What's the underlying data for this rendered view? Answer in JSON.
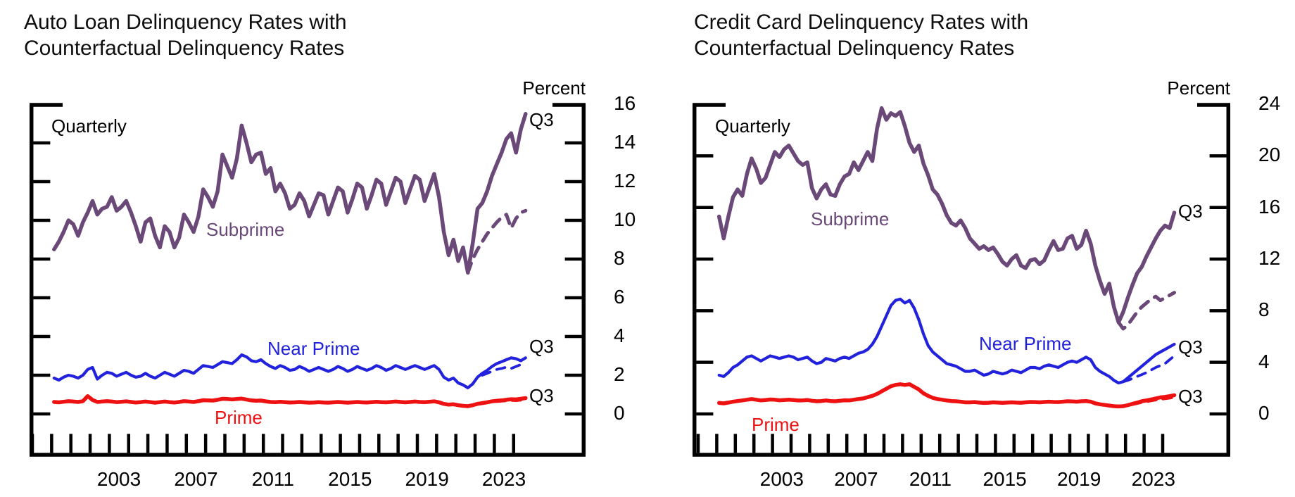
{
  "chart_data": [
    {
      "type": "line",
      "title": "Auto Loan Delinquency Rates with Counterfactual Delinquency Rates",
      "title_line1": "Auto Loan Delinquency Rates with",
      "title_line2": "Counterfactual Delinquency Rates",
      "unit_label": "Percent",
      "freq_label": "Quarterly",
      "end_label": "Q3",
      "frequency": "quarterly",
      "x_start": "2000Q1",
      "x_end": "2024Q3",
      "ylim": [
        0,
        16
      ],
      "ytick_labels": [
        "0",
        "2",
        "4",
        "6",
        "8",
        "10",
        "12",
        "14",
        "16"
      ],
      "xtick_labels": [
        "2003",
        "2007",
        "2011",
        "2015",
        "2019",
        "2023"
      ],
      "series": [
        {
          "name": "Subprime",
          "label": "Subprime",
          "color": "#6a4878",
          "width": 5.5,
          "dash": null,
          "start_index": 0,
          "values": [
            8.5,
            8.9,
            9.4,
            10.0,
            9.8,
            9.2,
            9.9,
            10.4,
            11.0,
            10.3,
            10.6,
            10.7,
            11.2,
            10.5,
            10.7,
            11.0,
            10.4,
            9.7,
            8.9,
            9.9,
            10.1,
            9.2,
            8.6,
            9.7,
            9.4,
            8.6,
            9.1,
            10.3,
            9.9,
            9.4,
            10.2,
            11.6,
            11.2,
            10.7,
            11.5,
            13.4,
            12.8,
            12.2,
            13.2,
            14.9,
            14.0,
            13.0,
            13.4,
            13.5,
            12.4,
            12.7,
            11.5,
            11.9,
            11.4,
            10.6,
            10.8,
            11.4,
            11.0,
            10.2,
            10.8,
            11.4,
            11.3,
            10.3,
            11.0,
            11.7,
            11.5,
            10.4,
            11.1,
            11.9,
            11.7,
            10.6,
            11.3,
            12.1,
            11.9,
            10.8,
            11.5,
            12.2,
            12.0,
            10.9,
            11.6,
            12.3,
            12.1,
            11.0,
            11.7,
            12.4,
            11.2,
            9.4,
            8.2,
            9.0,
            7.9,
            8.6,
            7.3,
            8.8,
            10.6,
            10.9,
            11.5,
            12.3,
            12.9,
            13.5,
            14.2,
            14.5,
            13.5,
            14.7,
            15.5
          ]
        },
        {
          "name": "Subprime counterfactual",
          "label": "",
          "color": "#6a4878",
          "width": 5,
          "dash": "14 11",
          "start_index": 86,
          "values": [
            7.3,
            8.0,
            8.5,
            8.9,
            9.3,
            9.6,
            9.9,
            10.15,
            10.3,
            9.6,
            10.1,
            10.4,
            10.5
          ]
        },
        {
          "name": "Near Prime",
          "label": "Near Prime",
          "color": "#2222dc",
          "width": 4.2,
          "dash": null,
          "start_index": 0,
          "values": [
            1.85,
            1.75,
            1.9,
            2.0,
            1.95,
            1.85,
            2.0,
            2.3,
            2.4,
            1.8,
            2.0,
            2.15,
            2.1,
            1.95,
            2.05,
            2.15,
            2.0,
            1.9,
            1.95,
            2.1,
            1.95,
            1.85,
            2.0,
            2.15,
            2.05,
            1.95,
            2.1,
            2.25,
            2.2,
            2.1,
            2.3,
            2.5,
            2.45,
            2.4,
            2.55,
            2.7,
            2.65,
            2.6,
            2.8,
            3.05,
            2.95,
            2.75,
            2.7,
            2.8,
            2.6,
            2.45,
            2.35,
            2.5,
            2.4,
            2.25,
            2.3,
            2.45,
            2.35,
            2.2,
            2.3,
            2.4,
            2.3,
            2.2,
            2.3,
            2.45,
            2.35,
            2.2,
            2.3,
            2.45,
            2.35,
            2.25,
            2.35,
            2.5,
            2.4,
            2.25,
            2.35,
            2.5,
            2.4,
            2.3,
            2.4,
            2.5,
            2.4,
            2.3,
            2.4,
            2.5,
            2.3,
            1.9,
            1.75,
            1.85,
            1.6,
            1.5,
            1.35,
            1.55,
            1.9,
            2.1,
            2.25,
            2.45,
            2.6,
            2.7,
            2.8,
            2.9,
            2.85,
            2.75,
            2.9
          ]
        },
        {
          "name": "Near Prime counterfactual",
          "label": "",
          "color": "#2222dc",
          "width": 3.8,
          "dash": "12 10",
          "start_index": 89,
          "values": [
            2.0,
            2.1,
            2.2,
            2.3,
            2.35,
            2.42,
            2.35,
            2.45,
            2.55,
            2.62
          ]
        },
        {
          "name": "Prime",
          "label": "Prime",
          "color": "#ee1111",
          "width": 5.5,
          "dash": null,
          "start_index": 0,
          "values": [
            0.62,
            0.6,
            0.63,
            0.66,
            0.64,
            0.62,
            0.66,
            0.92,
            0.72,
            0.62,
            0.64,
            0.66,
            0.64,
            0.61,
            0.63,
            0.65,
            0.62,
            0.59,
            0.61,
            0.64,
            0.61,
            0.58,
            0.61,
            0.64,
            0.61,
            0.59,
            0.62,
            0.66,
            0.64,
            0.62,
            0.66,
            0.71,
            0.7,
            0.69,
            0.73,
            0.78,
            0.77,
            0.75,
            0.77,
            0.79,
            0.74,
            0.7,
            0.68,
            0.69,
            0.65,
            0.62,
            0.61,
            0.63,
            0.61,
            0.59,
            0.6,
            0.62,
            0.6,
            0.58,
            0.59,
            0.61,
            0.59,
            0.58,
            0.6,
            0.62,
            0.6,
            0.58,
            0.6,
            0.62,
            0.6,
            0.59,
            0.61,
            0.63,
            0.61,
            0.6,
            0.62,
            0.64,
            0.62,
            0.6,
            0.62,
            0.64,
            0.62,
            0.61,
            0.63,
            0.65,
            0.6,
            0.52,
            0.48,
            0.5,
            0.45,
            0.42,
            0.4,
            0.45,
            0.52,
            0.56,
            0.6,
            0.65,
            0.68,
            0.7,
            0.73,
            0.76,
            0.75,
            0.78,
            0.82
          ]
        },
        {
          "name": "Prime counterfactual",
          "label": "",
          "color": "#ee1111",
          "width": 5,
          "dash": "12 10",
          "start_index": 92,
          "values": [
            0.66,
            0.68,
            0.7,
            0.72,
            0.71,
            0.73,
            0.75
          ]
        }
      ]
    },
    {
      "type": "line",
      "title": "Credit Card Delinquency Rates with Counterfactual Delinquency Rates",
      "title_line1": "Credit Card Delinquency Rates with",
      "title_line2": "Counterfactual Delinquency Rates",
      "unit_label": "Percent",
      "freq_label": "Quarterly",
      "end_label": "Q3",
      "frequency": "quarterly",
      "x_start": "2000Q1",
      "x_end": "2024Q3",
      "ylim": [
        0,
        24
      ],
      "ytick_labels": [
        "0",
        "4",
        "8",
        "12",
        "16",
        "20",
        "24"
      ],
      "xtick_labels": [
        "2003",
        "2007",
        "2011",
        "2015",
        "2019",
        "2023"
      ],
      "series": [
        {
          "name": "Subprime",
          "label": "Subprime",
          "color": "#6a4878",
          "width": 5.5,
          "dash": null,
          "start_index": 0,
          "values": [
            15.3,
            13.6,
            15.3,
            16.8,
            17.4,
            16.9,
            18.6,
            19.8,
            19.0,
            17.9,
            18.3,
            19.3,
            20.3,
            19.9,
            20.5,
            20.8,
            20.2,
            19.6,
            19.3,
            19.5,
            17.5,
            16.7,
            17.4,
            17.8,
            17.0,
            16.9,
            17.8,
            18.4,
            18.6,
            19.5,
            18.9,
            19.6,
            20.3,
            19.6,
            22.1,
            23.7,
            22.8,
            23.3,
            23.1,
            23.4,
            22.3,
            21.0,
            20.3,
            20.8,
            19.4,
            18.5,
            17.4,
            17.0,
            16.3,
            15.4,
            14.8,
            14.6,
            15.0,
            14.4,
            13.6,
            13.2,
            12.8,
            13.0,
            12.7,
            12.9,
            12.4,
            11.8,
            11.5,
            12.0,
            12.3,
            11.5,
            11.3,
            11.9,
            12.0,
            11.6,
            11.9,
            12.7,
            13.4,
            12.7,
            12.8,
            13.6,
            13.8,
            12.8,
            13.1,
            14.2,
            13.2,
            11.5,
            10.3,
            9.3,
            10.1,
            8.3,
            7.1,
            7.9,
            9.0,
            10.0,
            10.9,
            11.4,
            12.2,
            12.9,
            13.6,
            14.2,
            14.6,
            14.4,
            15.6
          ]
        },
        {
          "name": "Subprime counterfactual",
          "label": "",
          "color": "#6a4878",
          "width": 5,
          "dash": "14 11",
          "start_index": 86,
          "values": [
            7.1,
            6.6,
            6.9,
            7.4,
            7.9,
            8.3,
            8.6,
            8.9,
            9.1,
            8.8,
            9.0,
            9.2,
            9.4
          ]
        },
        {
          "name": "Near Prime",
          "label": "Near Prime",
          "color": "#2222dc",
          "width": 4.2,
          "dash": null,
          "start_index": 0,
          "values": [
            3.0,
            2.9,
            3.2,
            3.6,
            3.8,
            4.1,
            4.4,
            4.5,
            4.3,
            4.1,
            4.3,
            4.5,
            4.4,
            4.3,
            4.4,
            4.5,
            4.4,
            4.2,
            4.3,
            4.4,
            4.1,
            3.9,
            4.0,
            4.3,
            4.2,
            4.1,
            4.3,
            4.4,
            4.3,
            4.5,
            4.7,
            4.8,
            5.0,
            5.4,
            6.0,
            6.8,
            7.6,
            8.4,
            8.8,
            8.9,
            8.6,
            8.8,
            8.2,
            7.3,
            6.2,
            5.3,
            4.8,
            4.5,
            4.2,
            3.9,
            3.8,
            3.7,
            3.5,
            3.3,
            3.3,
            3.4,
            3.2,
            3.0,
            3.1,
            3.3,
            3.2,
            3.1,
            3.2,
            3.4,
            3.3,
            3.2,
            3.4,
            3.6,
            3.6,
            3.5,
            3.7,
            3.8,
            3.7,
            3.6,
            3.8,
            4.0,
            4.1,
            4.0,
            4.2,
            4.4,
            4.2,
            3.6,
            3.3,
            3.1,
            2.9,
            2.6,
            2.4,
            2.5,
            2.8,
            3.1,
            3.4,
            3.7,
            4.0,
            4.3,
            4.6,
            4.8,
            5.0,
            5.2,
            5.4
          ]
        },
        {
          "name": "Near Prime counterfactual",
          "label": "",
          "color": "#2222dc",
          "width": 3.8,
          "dash": "12 10",
          "start_index": 87,
          "values": [
            2.5,
            2.6,
            2.75,
            2.9,
            3.05,
            3.2,
            3.4,
            3.6,
            3.75,
            3.9,
            4.2,
            4.5
          ]
        },
        {
          "name": "Prime",
          "label": "Prime",
          "color": "#ee1111",
          "width": 5.5,
          "dash": null,
          "start_index": 0,
          "values": [
            0.85,
            0.82,
            0.88,
            0.95,
            1.0,
            1.05,
            1.1,
            1.15,
            1.1,
            1.05,
            1.08,
            1.12,
            1.1,
            1.06,
            1.08,
            1.1,
            1.08,
            1.04,
            1.05,
            1.08,
            1.02,
            0.98,
            1.0,
            1.05,
            1.0,
            0.98,
            1.02,
            1.06,
            1.05,
            1.1,
            1.15,
            1.2,
            1.3,
            1.4,
            1.55,
            1.75,
            1.95,
            2.15,
            2.25,
            2.3,
            2.25,
            2.3,
            2.1,
            1.9,
            1.6,
            1.4,
            1.25,
            1.15,
            1.1,
            1.05,
            1.0,
            0.98,
            0.95,
            0.9,
            0.9,
            0.92,
            0.88,
            0.85,
            0.87,
            0.9,
            0.88,
            0.86,
            0.88,
            0.9,
            0.88,
            0.87,
            0.9,
            0.93,
            0.92,
            0.9,
            0.93,
            0.95,
            0.93,
            0.92,
            0.95,
            0.98,
            0.97,
            0.95,
            0.98,
            1.0,
            0.95,
            0.82,
            0.75,
            0.7,
            0.65,
            0.6,
            0.58,
            0.6,
            0.68,
            0.78,
            0.88,
            0.98,
            1.05,
            1.12,
            1.2,
            1.28,
            1.32,
            1.38,
            1.45
          ]
        },
        {
          "name": "Prime counterfactual",
          "label": "",
          "color": "#ee1111",
          "width": 5,
          "dash": "12 10",
          "start_index": 89,
          "values": [
            0.76,
            0.84,
            0.92,
            0.99,
            1.05,
            1.11,
            1.17,
            1.21,
            1.26,
            1.31
          ]
        }
      ]
    }
  ]
}
